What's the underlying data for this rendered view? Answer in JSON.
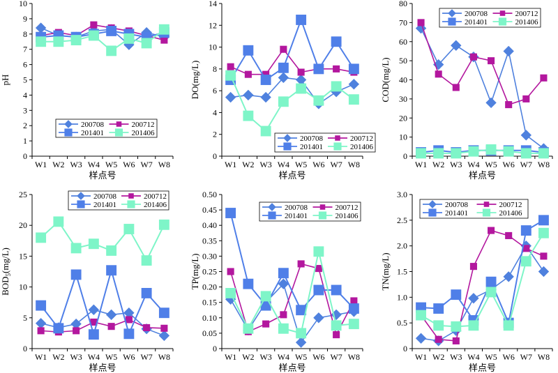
{
  "colors": {
    "200708": "#4F81DE",
    "200712": "#B3179E",
    "201401": "#4F7FE8",
    "201406": "#7EF5C8"
  },
  "chart_data": [
    {
      "type": "line",
      "ylabel": "pH",
      "xlabel": "样点号",
      "categories": [
        "W1",
        "W2",
        "W3",
        "W4",
        "W5",
        "W6",
        "W7",
        "W8"
      ],
      "ylim": [
        0,
        10
      ],
      "yticks": [
        "0",
        "1",
        "2",
        "3",
        "4",
        "5",
        "6",
        "7",
        "8",
        "9",
        "10"
      ],
      "legend_position": "lower-center",
      "series": [
        {
          "name": "200708",
          "values": [
            8.4,
            7.9,
            7.8,
            8.2,
            8.3,
            7.3,
            8.1,
            7.8
          ]
        },
        {
          "name": "200712",
          "values": [
            7.9,
            8.1,
            7.9,
            8.6,
            8.4,
            8.2,
            7.9,
            7.6
          ]
        },
        {
          "name": "201401",
          "values": [
            7.8,
            7.9,
            7.8,
            8.0,
            8.2,
            8.0,
            7.8,
            8.1
          ]
        },
        {
          "name": "201406",
          "values": [
            7.5,
            7.5,
            7.6,
            7.9,
            6.9,
            7.7,
            7.4,
            8.3
          ]
        }
      ]
    },
    {
      "type": "line",
      "ylabel": "DO(mg/L)",
      "xlabel": "样点号",
      "categories": [
        "W1",
        "W2",
        "W3",
        "W4",
        "W5",
        "W6",
        "W7",
        "W8"
      ],
      "ylim": [
        0,
        14
      ],
      "yticks": [
        "0",
        "2",
        "4",
        "6",
        "8",
        "10",
        "12",
        "14"
      ],
      "legend_position": "lower-right",
      "series": [
        {
          "name": "200708",
          "values": [
            5.4,
            5.6,
            5.4,
            7.2,
            7.0,
            4.8,
            5.9,
            6.6
          ]
        },
        {
          "name": "200712",
          "values": [
            8.2,
            7.5,
            7.5,
            9.8,
            7.7,
            8.0,
            8.0,
            7.7
          ]
        },
        {
          "name": "201401",
          "values": [
            7.0,
            9.7,
            7.0,
            8.1,
            12.5,
            8.0,
            10.5,
            8.0
          ]
        },
        {
          "name": "201406",
          "values": [
            7.4,
            3.7,
            2.3,
            5.0,
            6.2,
            5.1,
            6.4,
            5.2
          ]
        }
      ]
    },
    {
      "type": "line",
      "ylabel": "COD(mg/L)",
      "xlabel": "样点号",
      "categories": [
        "W1",
        "W2",
        "W3",
        "W4",
        "W5",
        "W6",
        "W7",
        "W8"
      ],
      "ylim": [
        0,
        80
      ],
      "yticks": [
        "0",
        "10",
        "20",
        "30",
        "40",
        "50",
        "60",
        "70",
        "80"
      ],
      "legend_position": "top-right",
      "series": [
        {
          "name": "200708",
          "values": [
            67,
            48,
            58,
            52,
            28,
            55,
            11,
            4
          ]
        },
        {
          "name": "200712",
          "values": [
            70,
            43,
            36,
            52,
            50,
            27,
            30,
            41
          ]
        },
        {
          "name": "201401",
          "values": [
            2,
            3,
            2,
            3,
            3,
            3,
            3,
            2
          ]
        },
        {
          "name": "201406",
          "values": [
            1.5,
            1.5,
            1.5,
            2.5,
            3.5,
            2.5,
            1.5,
            1.5
          ]
        }
      ]
    },
    {
      "type": "line",
      "ylabel": "BOD5(mg/L)",
      "xlabel": "样点号",
      "categories": [
        "W1",
        "W2",
        "W3",
        "W4",
        "W5",
        "W6",
        "W7",
        "W8"
      ],
      "ylim": [
        0,
        25
      ],
      "yticks": [
        "0",
        "5",
        "10",
        "15",
        "20",
        "25"
      ],
      "legend_position": "top-center",
      "series": [
        {
          "name": "200708",
          "values": [
            4.1,
            3.4,
            4.0,
            6.3,
            5.5,
            5.8,
            3.2,
            2.1
          ]
        },
        {
          "name": "200712",
          "values": [
            2.9,
            2.7,
            2.9,
            4.3,
            3.6,
            4.7,
            3.4,
            3.3
          ]
        },
        {
          "name": "201401",
          "values": [
            7.0,
            3.3,
            12.0,
            2.3,
            12.7,
            2.4,
            9.0,
            5.8
          ]
        },
        {
          "name": "201406",
          "values": [
            18.0,
            20.6,
            16.3,
            17.0,
            15.9,
            19.4,
            14.3,
            20.1
          ]
        }
      ]
    },
    {
      "type": "line",
      "ylabel": "TP(mg/L)",
      "xlabel": "样点号",
      "categories": [
        "W1",
        "W2",
        "W3",
        "W4",
        "W5",
        "W6",
        "W7",
        "W8"
      ],
      "ylim": [
        0,
        0.5
      ],
      "yticks": [
        "0",
        "0.05",
        "0.10",
        "0.15",
        "0.20",
        "0.25",
        "0.30",
        "0.35",
        "0.40",
        "0.45",
        "0.50"
      ],
      "legend_position": "top-right",
      "series": [
        {
          "name": "200708",
          "values": [
            0.16,
            0.06,
            0.15,
            0.21,
            0.02,
            0.1,
            0.11,
            0.12
          ]
        },
        {
          "name": "200712",
          "values": [
            0.25,
            0.055,
            0.08,
            0.11,
            0.275,
            0.26,
            0.045,
            0.155
          ]
        },
        {
          "name": "201401",
          "values": [
            0.44,
            0.21,
            0.14,
            0.245,
            0.125,
            0.19,
            0.19,
            0.13
          ]
        },
        {
          "name": "201406",
          "values": [
            0.18,
            0.065,
            0.17,
            0.065,
            0.05,
            0.315,
            0.075,
            0.08
          ]
        }
      ]
    },
    {
      "type": "line",
      "ylabel": "TN(mg/L)",
      "xlabel": "样点号",
      "categories": [
        "W1",
        "W2",
        "W3",
        "W4",
        "W5",
        "W6",
        "W7",
        "W8"
      ],
      "ylim": [
        0,
        3
      ],
      "yticks": [
        "0",
        "0.5",
        "1.0",
        "1.5",
        "2.0",
        "2.5",
        "3.0"
      ],
      "legend_position": "top-center",
      "series": [
        {
          "name": "200708",
          "values": [
            0.2,
            0.15,
            0.35,
            0.98,
            1.15,
            1.4,
            2.0,
            1.5
          ]
        },
        {
          "name": "200712",
          "values": [
            0.65,
            0.18,
            0.15,
            1.6,
            2.3,
            2.2,
            1.95,
            1.8
          ]
        },
        {
          "name": "201401",
          "values": [
            0.8,
            0.78,
            1.05,
            0.55,
            1.3,
            0.5,
            2.3,
            2.5
          ]
        },
        {
          "name": "201406",
          "values": [
            0.65,
            0.45,
            0.43,
            0.45,
            1.1,
            0.45,
            1.7,
            2.25
          ]
        }
      ]
    }
  ]
}
